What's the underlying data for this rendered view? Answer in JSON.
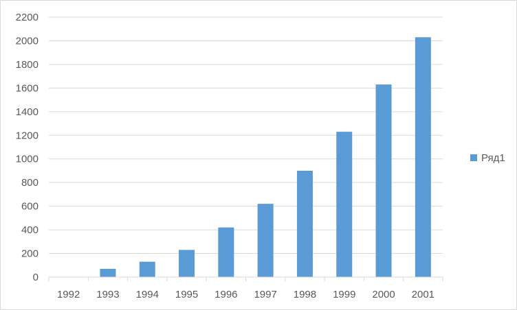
{
  "chart_data": {
    "type": "bar",
    "categories": [
      "1992",
      "1993",
      "1994",
      "1995",
      "1996",
      "1997",
      "1998",
      "1999",
      "2000",
      "2001"
    ],
    "series": [
      {
        "name": "Ряд1",
        "values": [
          0,
          70,
          130,
          230,
          420,
          620,
          900,
          1230,
          1630,
          2030
        ],
        "color": "#5b9bd5"
      }
    ],
    "yticks": [
      0,
      200,
      400,
      600,
      800,
      1000,
      1200,
      1400,
      1600,
      1800,
      2000,
      2200
    ],
    "ylim": [
      0,
      2200
    ],
    "grid": true,
    "legend_position": "right"
  }
}
